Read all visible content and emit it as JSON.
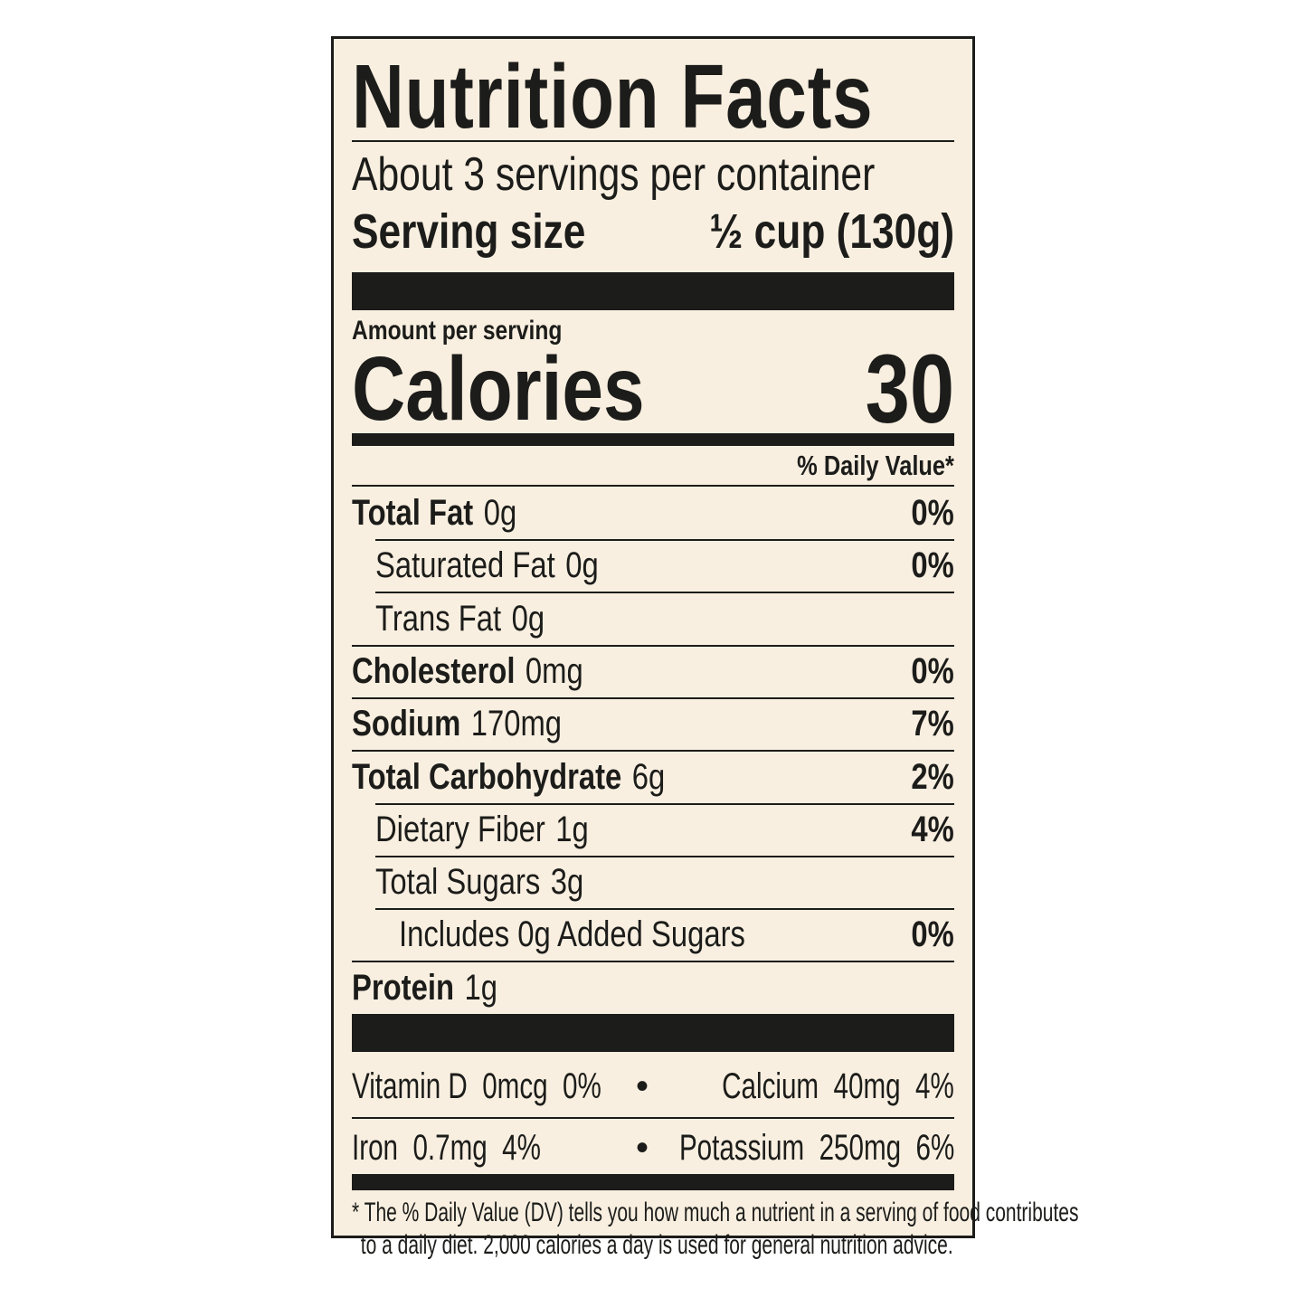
{
  "title": "Nutrition Facts",
  "servings_per_container": "About 3 servings per container",
  "serving_size": {
    "label": "Serving size",
    "value": "½ cup (130g)"
  },
  "amount_per_serving": "Amount per serving",
  "calories": {
    "label": "Calories",
    "value": "30"
  },
  "daily_value_header": "% Daily Value*",
  "nutrients": [
    {
      "name": "Total Fat",
      "amount": "0g",
      "dv": "0%",
      "bold": true,
      "indent": 0
    },
    {
      "name": "Saturated Fat",
      "amount": "0g",
      "dv": "0%",
      "bold": false,
      "indent": 1
    },
    {
      "name": "Trans Fat",
      "amount": "0g",
      "dv": "",
      "bold": false,
      "indent": 1
    },
    {
      "name": "Cholesterol",
      "amount": "0mg",
      "dv": "0%",
      "bold": true,
      "indent": 0
    },
    {
      "name": "Sodium",
      "amount": "170mg",
      "dv": "7%",
      "bold": true,
      "indent": 0
    },
    {
      "name": "Total Carbohydrate",
      "amount": "6g",
      "dv": "2%",
      "bold": true,
      "indent": 0
    },
    {
      "name": "Dietary Fiber",
      "amount": "1g",
      "dv": "4%",
      "bold": false,
      "indent": 1
    },
    {
      "name": "Total Sugars",
      "amount": "3g",
      "dv": "",
      "bold": false,
      "indent": 1
    },
    {
      "name": "Includes 0g Added Sugars",
      "amount": "",
      "dv": "0%",
      "bold": false,
      "indent": 2
    },
    {
      "name": "Protein",
      "amount": "1g",
      "dv": "",
      "bold": true,
      "indent": 0
    }
  ],
  "micronutrients": [
    {
      "left": "Vitamin D  0mcg  0%",
      "right": "Calcium  40mg  4%"
    },
    {
      "left": "Iron  0.7mg  4%",
      "right": "Potassium  250mg  6%"
    }
  ],
  "bullet": "•",
  "footnote": [
    "* The % Daily Value (DV) tells you how much a nutrient in a serving of food contributes",
    "to a daily diet. 2,000 calories a day is used for general nutrition advice."
  ],
  "colors": {
    "background": "#f8efe0",
    "ink": "#1c1c1a"
  }
}
